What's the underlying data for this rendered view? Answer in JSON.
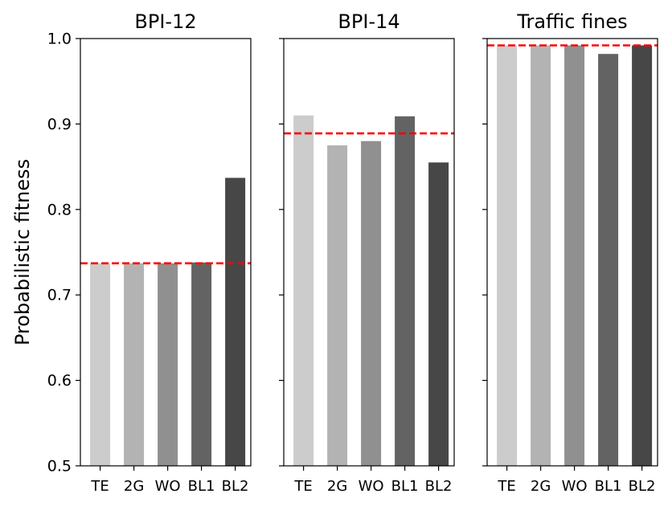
{
  "chart_data": {
    "type": "bar",
    "ylabel": "Probabilistic fitness",
    "ylim": [
      0.5,
      1.0
    ],
    "yticks": [
      "0.5",
      "0.6",
      "0.7",
      "0.8",
      "0.9",
      "1.0"
    ],
    "categories": [
      "TE",
      "2G",
      "WO",
      "BL1",
      "BL2"
    ],
    "bar_colors": [
      "#cccccc",
      "#b3b3b3",
      "#909090",
      "#636363",
      "#474747"
    ],
    "reference_color": "#ff0000",
    "panels": [
      {
        "title": "BPI-12",
        "values": [
          0.737,
          0.737,
          0.737,
          0.738,
          0.837
        ],
        "reference": 0.737
      },
      {
        "title": "BPI-14",
        "values": [
          0.91,
          0.875,
          0.88,
          0.909,
          0.855
        ],
        "reference": 0.889
      },
      {
        "title": "Traffic fines",
        "values": [
          0.992,
          0.992,
          0.992,
          0.982,
          0.992
        ],
        "reference": 0.992
      }
    ]
  }
}
